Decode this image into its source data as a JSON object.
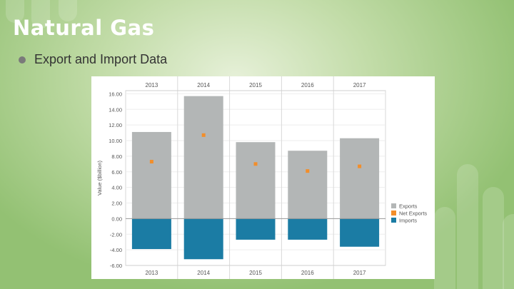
{
  "slide": {
    "title": "Natural Gas",
    "bullet": "Export and Import Data"
  },
  "colors": {
    "exports": "#b3b6b6",
    "net_exports": "#f28e2b",
    "imports": "#1b7ca4"
  },
  "chart_data": {
    "type": "bar",
    "categories": [
      "2013",
      "2014",
      "2015",
      "2016",
      "2017"
    ],
    "series": [
      {
        "name": "Exports",
        "values": [
          11.1,
          15.7,
          9.8,
          8.7,
          10.3
        ]
      },
      {
        "name": "Net Exports",
        "values": [
          7.3,
          10.7,
          7.0,
          6.1,
          6.7
        ]
      },
      {
        "name": "Imports",
        "values": [
          -3.9,
          -5.2,
          -2.7,
          -2.7,
          -3.6
        ]
      }
    ],
    "ylabel": "Value ($billion)",
    "ylim": [
      -6,
      16.4
    ],
    "yticks": [
      "16.00",
      "14.00",
      "12.00",
      "10.00",
      "8.00",
      "6.00",
      "4.00",
      "2.00",
      "0.00",
      "-2.00",
      "-4.00",
      "-6.00"
    ],
    "legend": [
      "Exports",
      "Net Exports",
      "Imports"
    ],
    "legend_position": "right"
  }
}
